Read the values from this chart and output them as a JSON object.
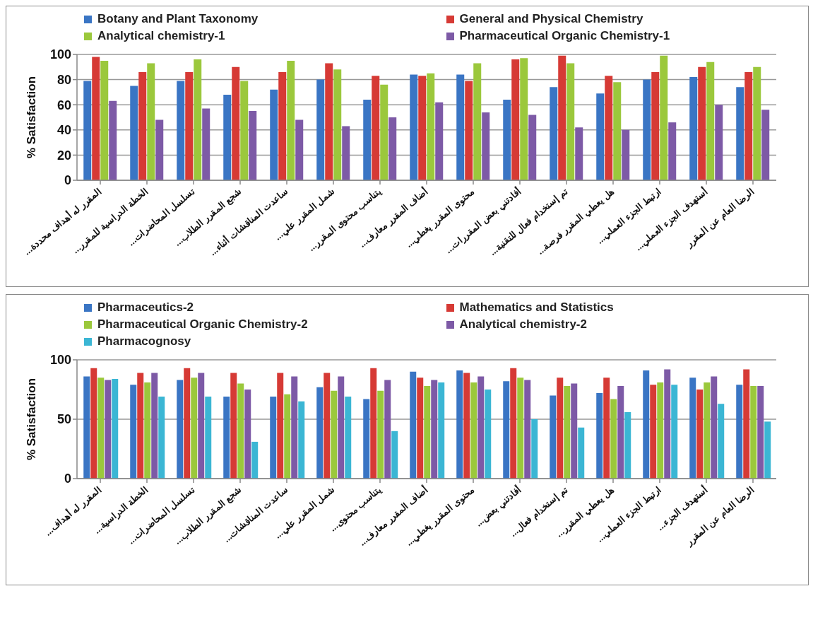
{
  "chart_data": [
    {
      "type": "bar",
      "ylabel": "% Satisfaction",
      "legend": "top",
      "grid": "y",
      "ylim": [
        0,
        100
      ],
      "yticks": [
        0,
        20,
        40,
        60,
        80,
        100
      ],
      "categories": [
        "المقرر له أهداف محددة...",
        "الخطة الدراسية للمقرر...",
        "تسلسل المحاضرات...",
        "شجع المقرر الطلاب...",
        "ساعدت المناقشات أثناء...",
        "شمل المقرر علي...",
        "يتناسب محتوى المقرر...",
        "أضاف المقرر معارف...",
        "محتوى المقرر يغطي...",
        "أفادتني بعض المقررات...",
        "تم إستخدام فعال للتقنية...",
        "هل يعطي المقرر فرصة...",
        "ارتبط الجزء العملي...",
        "أستهدف الجزء العملي...",
        "الرضا العام عن المقرر"
      ],
      "series": [
        {
          "name": "Botany and Plant Taxonomy",
          "color": "#3a75c4",
          "values": [
            79,
            75,
            79,
            68,
            72,
            80,
            64,
            84,
            84,
            64,
            74,
            69,
            80,
            82,
            74
          ]
        },
        {
          "name": "General and Physical Chemistry",
          "color": "#d63a35",
          "values": [
            98,
            86,
            86,
            90,
            86,
            93,
            83,
            83,
            79,
            96,
            99,
            83,
            86,
            90,
            86
          ]
        },
        {
          "name": "Analytical chemistry-1",
          "color": "#9bc83c",
          "values": [
            95,
            93,
            96,
            79,
            95,
            88,
            76,
            85,
            93,
            97,
            93,
            78,
            99,
            94,
            90
          ]
        },
        {
          "name": "Pharmaceutical Organic Chemistry-1",
          "color": "#7d5aa6",
          "values": [
            63,
            48,
            57,
            55,
            48,
            43,
            50,
            62,
            54,
            52,
            42,
            40,
            46,
            60,
            56
          ]
        }
      ]
    },
    {
      "type": "bar",
      "ylabel": "% Satisfaction",
      "legend": "top",
      "grid": "y",
      "ylim": [
        0,
        100
      ],
      "yticks": [
        0,
        50,
        100
      ],
      "categories": [
        "المقرر له أهداف...",
        "الخطة الدراسية...",
        "تسلسل المحاضرات...",
        "شجع المقرر الطلاب...",
        "ساعدت المناقشات...",
        "شمل المقرر علي...",
        "يتناسب محتوى...",
        "أضاف المقرر معارف...",
        "محتوى المقرر يغطي...",
        "أفادتني بعض...",
        "تم إستخدام فعال...",
        "هل يعطي المقرر...",
        "ارتبط الجزء العملي...",
        "أستهدف الجزء...",
        "الرضا العام عن المقرر"
      ],
      "series": [
        {
          "name": "Pharmaceutics-2",
          "color": "#3a75c4",
          "values": [
            86,
            79,
            83,
            69,
            69,
            77,
            67,
            90,
            91,
            82,
            70,
            72,
            91,
            85,
            79
          ]
        },
        {
          "name": "Mathematics and Statistics",
          "color": "#d63a35",
          "values": [
            93,
            89,
            93,
            89,
            89,
            89,
            93,
            85,
            89,
            93,
            85,
            85,
            79,
            75,
            92
          ]
        },
        {
          "name": "Pharmaceutical Organic Chemistry-2",
          "color": "#9bc83c",
          "values": [
            85,
            81,
            85,
            80,
            71,
            74,
            74,
            78,
            81,
            85,
            78,
            67,
            81,
            81,
            78
          ]
        },
        {
          "name": "Analytical chemistry-2",
          "color": "#7d5aa6",
          "values": [
            83,
            89,
            89,
            75,
            86,
            86,
            83,
            83,
            86,
            83,
            80,
            78,
            92,
            86,
            78
          ]
        },
        {
          "name": "Pharmacognosy",
          "color": "#3bb6d4",
          "values": [
            84,
            69,
            69,
            31,
            65,
            69,
            40,
            81,
            75,
            50,
            43,
            56,
            79,
            63,
            48
          ]
        }
      ]
    }
  ]
}
